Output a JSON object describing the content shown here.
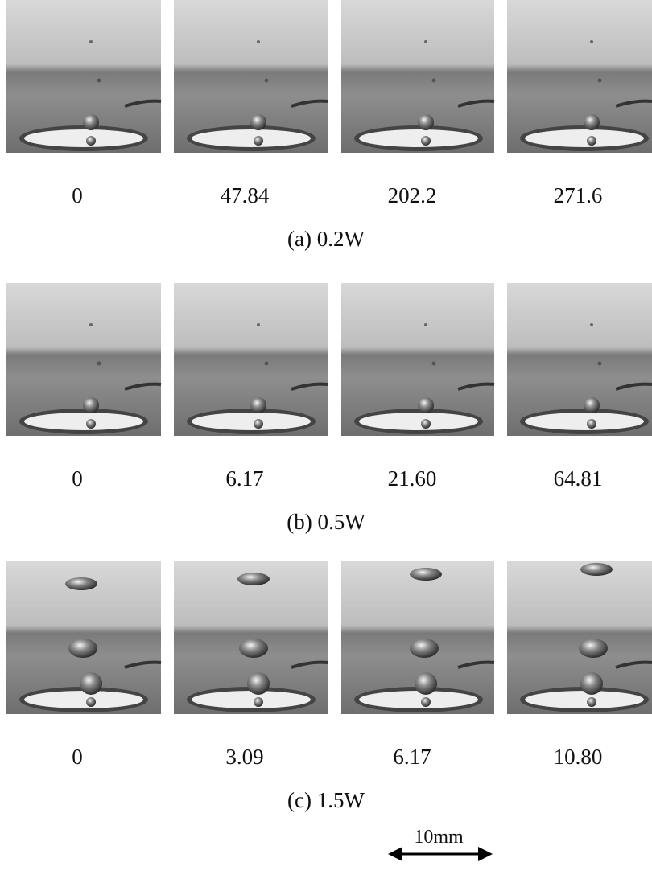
{
  "panels": [
    {
      "caption": "(a) 0.2W",
      "frames": [
        "0",
        "47.84",
        "202.2",
        "271.6"
      ]
    },
    {
      "caption": "(b) 0.5W",
      "frames": [
        "0",
        "6.17",
        "21.60",
        "64.81"
      ]
    },
    {
      "caption": "(c) 1.5W",
      "frames": [
        "0",
        "3.09",
        "6.17",
        "10.80"
      ]
    }
  ],
  "scale_bar": {
    "label": "10mm"
  }
}
